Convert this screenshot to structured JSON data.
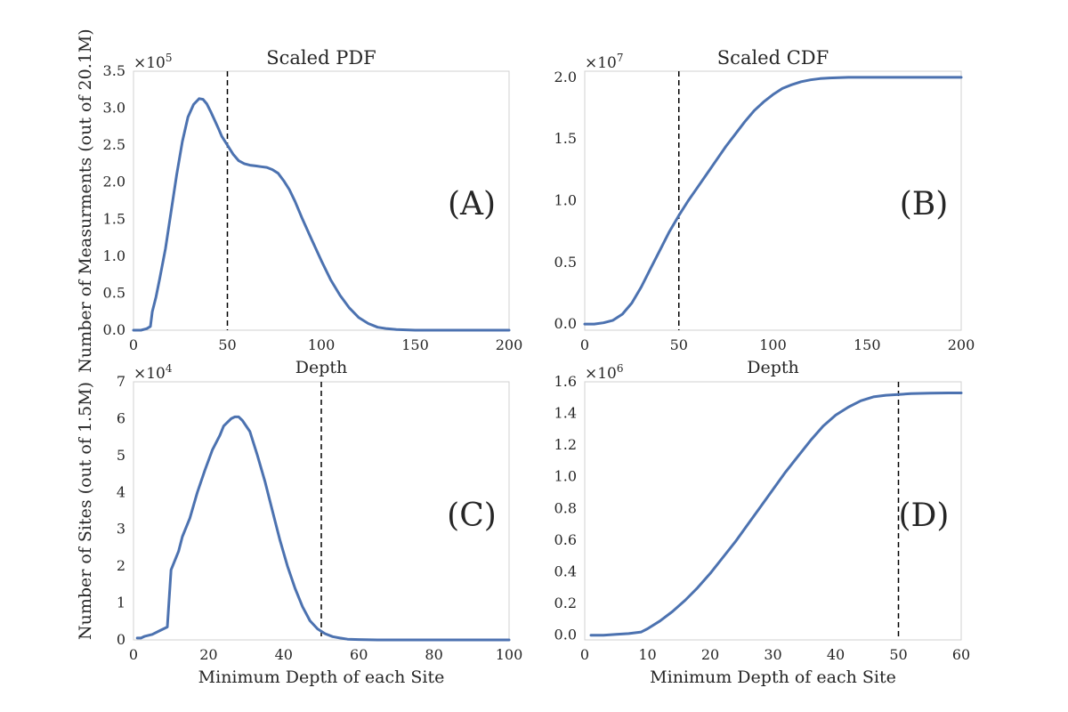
{
  "chart_data": [
    {
      "id": "A",
      "type": "line",
      "title": "Scaled PDF",
      "xlabel": "Depth",
      "ylabel": "Number of Measurments (out of 20.1M)",
      "multiplier": "×10",
      "multiplier_exp": "5",
      "panel_label": "(A)",
      "xlim": [
        0,
        200
      ],
      "ylim": [
        0,
        3.5
      ],
      "xticks": [
        0,
        50,
        100,
        150,
        200
      ],
      "yticks": [
        0.0,
        0.5,
        1.0,
        1.5,
        2.0,
        2.5,
        3.0,
        3.5
      ],
      "xtick_labels": [
        "0",
        "50",
        "100",
        "150",
        "200"
      ],
      "ytick_labels": [
        "0.0",
        "0.5",
        "1.0",
        "1.5",
        "2.0",
        "2.5",
        "3.0",
        "3.5"
      ],
      "vline": 50,
      "grid": false,
      "series": [
        {
          "x": [
            0,
            4,
            7,
            9,
            10,
            12,
            14,
            17,
            20,
            23,
            26,
            29,
            32,
            35,
            37,
            39,
            41,
            43,
            45,
            47,
            50,
            53,
            56,
            59,
            62,
            65,
            68,
            71,
            74,
            77,
            80,
            83,
            86,
            90,
            95,
            100,
            105,
            110,
            115,
            120,
            125,
            130,
            135,
            140,
            150,
            160,
            180,
            200
          ],
          "y": [
            0.0,
            0.0,
            0.02,
            0.05,
            0.25,
            0.45,
            0.7,
            1.1,
            1.6,
            2.1,
            2.55,
            2.88,
            3.05,
            3.13,
            3.12,
            3.06,
            2.96,
            2.85,
            2.74,
            2.62,
            2.5,
            2.38,
            2.29,
            2.25,
            2.23,
            2.22,
            2.21,
            2.2,
            2.17,
            2.12,
            2.02,
            1.9,
            1.74,
            1.5,
            1.22,
            0.94,
            0.68,
            0.47,
            0.3,
            0.17,
            0.09,
            0.04,
            0.02,
            0.01,
            0.0,
            0.0,
            0.0,
            0.0
          ]
        }
      ]
    },
    {
      "id": "B",
      "type": "line",
      "title": "Scaled CDF",
      "xlabel": "Depth",
      "ylabel": "",
      "multiplier": "×10",
      "multiplier_exp": "7",
      "panel_label": "(B)",
      "xlim": [
        0,
        200
      ],
      "ylim": [
        -0.05,
        2.05
      ],
      "xticks": [
        0,
        50,
        100,
        150,
        200
      ],
      "yticks": [
        0.0,
        0.5,
        1.0,
        1.5,
        2.0
      ],
      "xtick_labels": [
        "0",
        "50",
        "100",
        "150",
        "200"
      ],
      "ytick_labels": [
        "0.0",
        "0.5",
        "1.0",
        "1.5",
        "2.0"
      ],
      "vline": 50,
      "grid": false,
      "series": [
        {
          "x": [
            0,
            5,
            10,
            15,
            20,
            25,
            30,
            35,
            40,
            45,
            50,
            55,
            60,
            65,
            70,
            75,
            80,
            85,
            90,
            95,
            100,
            105,
            110,
            115,
            120,
            125,
            130,
            140,
            150,
            160,
            180,
            200
          ],
          "y": [
            0.0,
            0.0,
            0.01,
            0.03,
            0.08,
            0.17,
            0.3,
            0.45,
            0.6,
            0.75,
            0.88,
            1.0,
            1.11,
            1.22,
            1.33,
            1.44,
            1.54,
            1.64,
            1.73,
            1.8,
            1.86,
            1.91,
            1.94,
            1.965,
            1.98,
            1.99,
            1.995,
            2.0,
            2.0,
            2.0,
            2.0,
            2.0
          ]
        }
      ]
    },
    {
      "id": "C",
      "type": "line",
      "title": "",
      "xlabel": "Minimum Depth of each Site",
      "ylabel": "Number of Sites (out of 1.5M)",
      "multiplier": "×10",
      "multiplier_exp": "4",
      "panel_label": "(C)",
      "xlim": [
        0,
        100
      ],
      "ylim": [
        0,
        7
      ],
      "xticks": [
        0,
        20,
        40,
        60,
        80,
        100
      ],
      "yticks": [
        0,
        1,
        2,
        3,
        4,
        5,
        6,
        7
      ],
      "xtick_labels": [
        "0",
        "20",
        "40",
        "60",
        "80",
        "100"
      ],
      "ytick_labels": [
        "0",
        "1",
        "2",
        "3",
        "4",
        "5",
        "6",
        "7"
      ],
      "vline": 50,
      "grid": false,
      "series": [
        {
          "x": [
            1,
            2,
            3,
            5,
            7,
            9,
            10,
            12,
            13,
            15,
            17,
            19,
            21,
            23,
            24,
            26,
            27,
            28,
            29,
            31,
            33,
            35,
            37,
            39,
            41,
            43,
            45,
            47,
            49,
            51,
            53,
            55,
            57,
            60,
            65,
            70,
            80,
            90,
            100
          ],
          "y": [
            0.05,
            0.05,
            0.1,
            0.15,
            0.25,
            0.35,
            1.9,
            2.4,
            2.8,
            3.3,
            4.0,
            4.6,
            5.15,
            5.55,
            5.8,
            6.0,
            6.05,
            6.05,
            5.95,
            5.65,
            5.0,
            4.3,
            3.5,
            2.7,
            2.0,
            1.4,
            0.9,
            0.52,
            0.3,
            0.17,
            0.09,
            0.05,
            0.02,
            0.01,
            0.0,
            0.0,
            0.0,
            0.0,
            0.0
          ]
        }
      ]
    },
    {
      "id": "D",
      "type": "line",
      "title": "",
      "xlabel": "Minimum Depth of each Site",
      "ylabel": "",
      "multiplier": "×10",
      "multiplier_exp": "6",
      "panel_label": "(D)",
      "xlim": [
        0,
        60
      ],
      "ylim": [
        -0.03,
        1.6
      ],
      "xticks": [
        0,
        10,
        20,
        30,
        40,
        50,
        60
      ],
      "yticks": [
        0.0,
        0.2,
        0.4,
        0.6,
        0.8,
        1.0,
        1.2,
        1.4,
        1.6
      ],
      "xtick_labels": [
        "0",
        "10",
        "20",
        "30",
        "40",
        "50",
        "60"
      ],
      "ytick_labels": [
        "0.0",
        "0.2",
        "0.4",
        "0.6",
        "0.8",
        "1.0",
        "1.2",
        "1.4",
        "1.6"
      ],
      "vline": 50,
      "grid": false,
      "series": [
        {
          "x": [
            1,
            3,
            5,
            7,
            9,
            10,
            12,
            14,
            16,
            18,
            20,
            22,
            24,
            26,
            28,
            30,
            32,
            34,
            36,
            38,
            40,
            42,
            44,
            46,
            48,
            50,
            52,
            55,
            58,
            60
          ],
          "y": [
            0.0,
            0.0,
            0.005,
            0.01,
            0.02,
            0.04,
            0.09,
            0.15,
            0.22,
            0.3,
            0.39,
            0.49,
            0.59,
            0.7,
            0.81,
            0.92,
            1.03,
            1.13,
            1.23,
            1.32,
            1.39,
            1.44,
            1.48,
            1.505,
            1.515,
            1.52,
            1.525,
            1.528,
            1.53,
            1.53
          ]
        }
      ]
    }
  ]
}
